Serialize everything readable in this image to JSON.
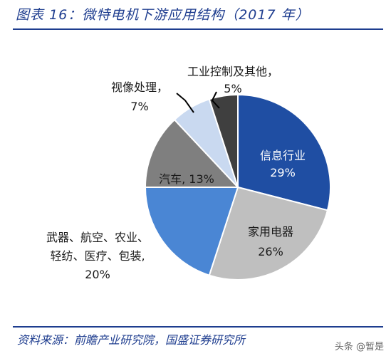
{
  "header": {
    "title": "图表 16：微特电机下游应用结构（2017 年）"
  },
  "footer": {
    "source": "资料来源：前瞻产业研究院，国盛证券研究所",
    "watermark": "头条 @暂是"
  },
  "chart_data": {
    "type": "pie",
    "title": "",
    "unit": "%",
    "slices": [
      {
        "label": "信息行业",
        "value": 29,
        "color": "#1f4ea3"
      },
      {
        "label": "家用电器",
        "value": 26,
        "color": "#bfbfbf"
      },
      {
        "label": "武器、航空、农业、轻纺、医疗、包装",
        "value": 20,
        "color": "#4a86d4"
      },
      {
        "label": "汽车",
        "value": 13,
        "color": "#7f7f7f"
      },
      {
        "label": "视像处理",
        "value": 7,
        "color": "#c9d9f0"
      },
      {
        "label": "工业控制及其他",
        "value": 5,
        "color": "#3f3f3f"
      }
    ],
    "label_text": [
      [
        "信息行业",
        "29%"
      ],
      [
        "家用电器",
        "26%"
      ],
      [
        "武器、航空、农业、",
        "轻纺、医疗、包装,",
        "20%"
      ],
      [
        "汽车, 13%"
      ],
      [
        "视像处理，",
        "7%"
      ],
      [
        "工业控制及其他，",
        "5%"
      ]
    ]
  }
}
